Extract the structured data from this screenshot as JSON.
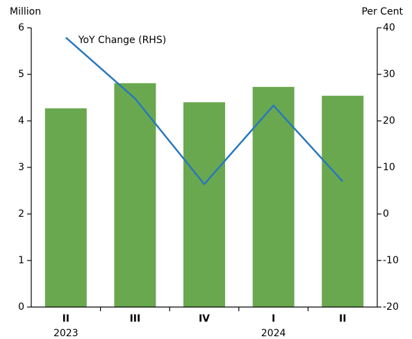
{
  "chart_data": {
    "type": "bar-line",
    "y_label": "Million",
    "y2_label": "Per Cent",
    "categories": [
      "II",
      "III",
      "IV",
      "I",
      "II"
    ],
    "years": [
      "2023",
      null,
      null,
      "2024",
      null
    ],
    "series": [
      {
        "type": "bar",
        "color": "#6aa84f",
        "values": [
          4.27,
          4.81,
          4.4,
          4.73,
          4.54
        ]
      },
      {
        "type": "line",
        "name": "YoY Change (RHS)",
        "color": "#2878bd",
        "axis": "y2",
        "values": [
          37.9,
          24.8,
          6.4,
          23.3,
          7.0
        ]
      }
    ],
    "ylim": [
      0,
      6
    ],
    "yticks": [
      0,
      1,
      2,
      3,
      4,
      5,
      6
    ],
    "y2lim": [
      -20,
      40
    ],
    "y2ticks": [
      -20,
      -10,
      0,
      10,
      20,
      30,
      40
    ]
  }
}
